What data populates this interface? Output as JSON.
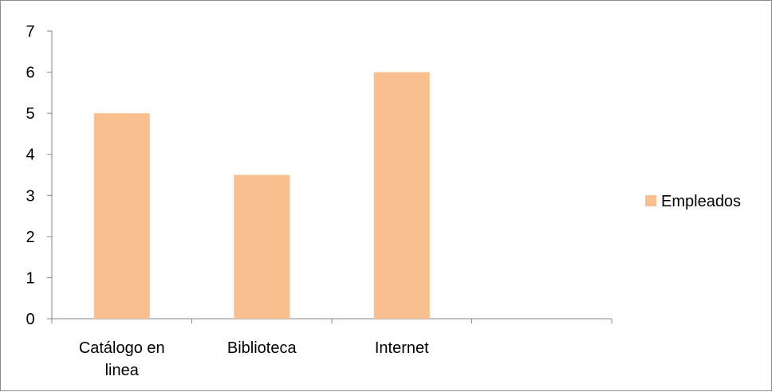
{
  "chart_data": {
    "type": "bar",
    "categories": [
      [
        "Catálogo en",
        "linea"
      ],
      [
        "Biblioteca"
      ],
      [
        "Internet"
      ],
      []
    ],
    "series": [
      {
        "name": "Empleados",
        "values": [
          5,
          3.5,
          6,
          null
        ],
        "color": "#F9BF8F"
      }
    ],
    "yticks": [
      "0",
      "1",
      "2",
      "3",
      "4",
      "5",
      "6",
      "7"
    ],
    "ylim": [
      0,
      7
    ],
    "grid": false,
    "legend_position": "right"
  }
}
